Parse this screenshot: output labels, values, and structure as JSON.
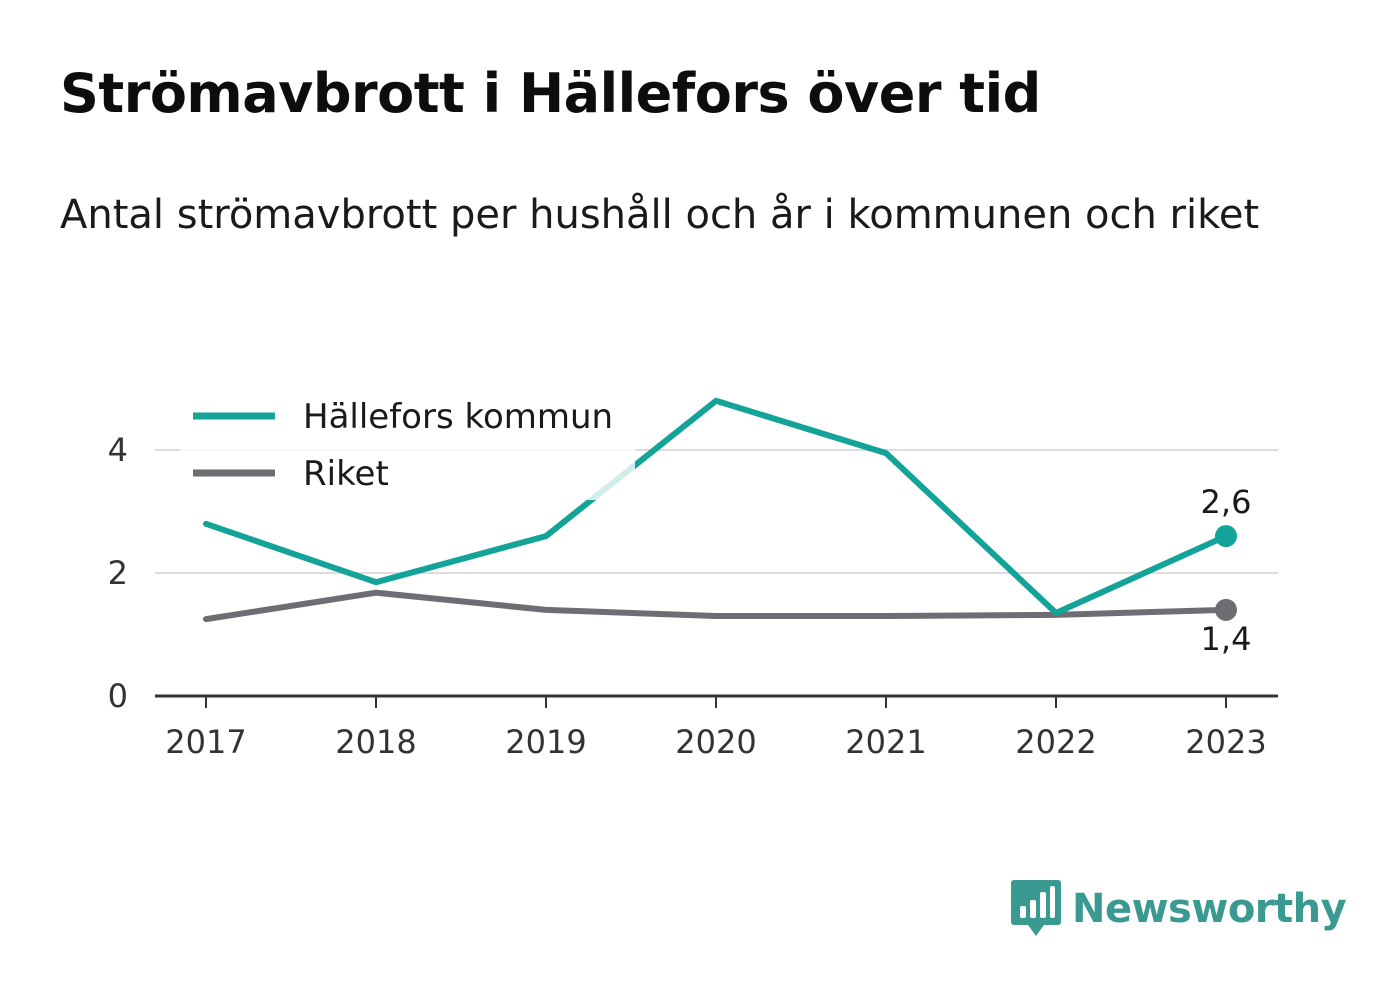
{
  "title": "Strömavbrott i Hällefors över tid",
  "subtitle": "Antal strömavbrott per hushåll och år i kommunen och riket",
  "brand": "Newsworthy",
  "chart_data": {
    "type": "line",
    "x": [
      "2017",
      "2018",
      "2019",
      "2020",
      "2021",
      "2022",
      "2023"
    ],
    "y_ticks": [
      0,
      2,
      4
    ],
    "ylim": [
      0,
      4.8
    ],
    "grid": true,
    "legend_position": "top-left",
    "series": [
      {
        "name": "Hällefors kommun",
        "color": "#13a398",
        "values": [
          2.8,
          1.85,
          2.6,
          4.8,
          3.95,
          1.35,
          2.6
        ],
        "end_label": "2,6"
      },
      {
        "name": "Riket",
        "color": "#6e6d74",
        "values": [
          1.25,
          1.68,
          1.4,
          1.3,
          1.3,
          1.32,
          1.4
        ],
        "end_label": "1,4"
      }
    ]
  }
}
